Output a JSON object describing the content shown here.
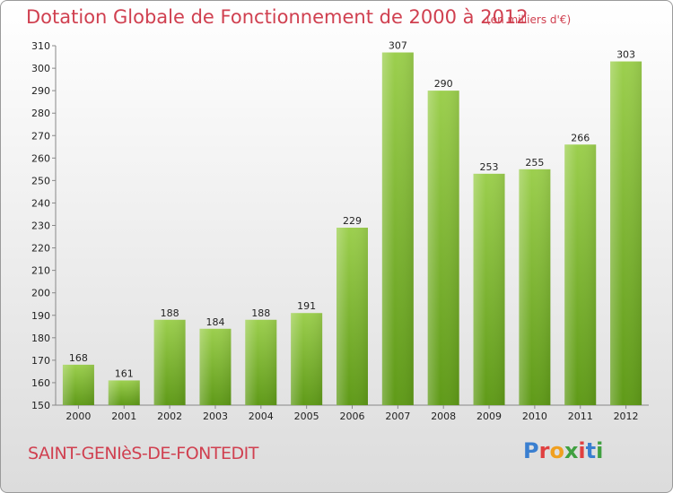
{
  "title": "Dotation Globale de Fonctionnement de 2000 à 2012",
  "unit_note": "(en milliers d'€)",
  "commune": "SAINT-GENIèS-DE-FONTEDIT",
  "logo": {
    "letters": [
      "P",
      "r",
      "o",
      "x",
      "i",
      "t",
      "i"
    ],
    "colors": [
      "#3a7fd0",
      "#e04040",
      "#f0a020",
      "#40a040",
      "#e04040",
      "#3a7fd0",
      "#40a040"
    ]
  },
  "colors": {
    "title": "#d04050",
    "bar_top": "#9ccf4e",
    "bar_bottom": "#5f9a18"
  },
  "chart_data": {
    "type": "bar",
    "categories": [
      "2000",
      "2001",
      "2002",
      "2003",
      "2004",
      "2005",
      "2006",
      "2007",
      "2008",
      "2009",
      "2010",
      "2011",
      "2012"
    ],
    "values": [
      168,
      161,
      188,
      184,
      188,
      191,
      229,
      307,
      290,
      253,
      255,
      266,
      303
    ],
    "title": "Dotation Globale de Fonctionnement de 2000 à 2012",
    "ylim": [
      150,
      310
    ],
    "yticks": [
      150,
      160,
      170,
      180,
      190,
      200,
      210,
      220,
      230,
      240,
      250,
      260,
      270,
      280,
      290,
      300,
      310
    ],
    "grid": false,
    "data_labels": true
  }
}
